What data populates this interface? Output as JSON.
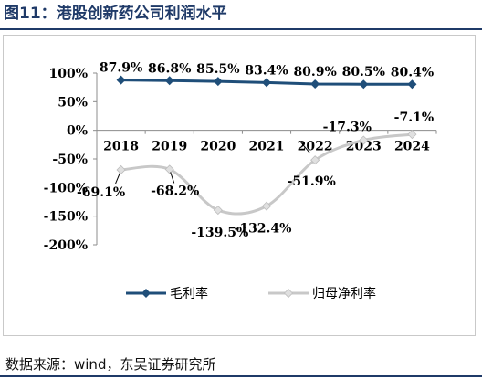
{
  "header": {
    "title": "图11：港股创新药公司利润水平"
  },
  "footer": {
    "source": "数据来源：wind，东吴证券研究所"
  },
  "colors": {
    "gross": "#1f4e79",
    "net": "#c8c8c8",
    "title": "#1f3a68"
  },
  "chart_data": {
    "type": "line",
    "title": "",
    "xlabel": "",
    "ylabel": "",
    "categories": [
      "2018",
      "2019",
      "2020",
      "2021",
      "2022",
      "2023",
      "2024"
    ],
    "ylim": [
      -200,
      100
    ],
    "yticks": [
      100,
      50,
      0,
      -50,
      -100,
      -150,
      -200
    ],
    "ytick_labels": [
      "100%",
      "50%",
      "0%",
      "-50%",
      "-100%",
      "-150%",
      "-200%"
    ],
    "grid": false,
    "legend_position": "bottom",
    "series": [
      {
        "name": "毛利率",
        "marker": "diamond",
        "smooth": false,
        "values": [
          87.9,
          86.8,
          85.5,
          83.4,
          80.9,
          80.5,
          80.4
        ],
        "labels": [
          "87.9%",
          "86.8%",
          "85.5%",
          "83.4%",
          "80.9%",
          "80.5%",
          "80.4%"
        ]
      },
      {
        "name": "归母净利率",
        "marker": "diamond",
        "smooth": true,
        "values": [
          -69.1,
          -68.2,
          -139.5,
          -132.4,
          -51.9,
          -17.3,
          -7.1
        ],
        "labels": [
          "-69.1%",
          "-68.2%",
          "-139.5%",
          "-132.4%",
          "-51.9%",
          "-17.3%",
          "-7.1%"
        ]
      }
    ]
  }
}
